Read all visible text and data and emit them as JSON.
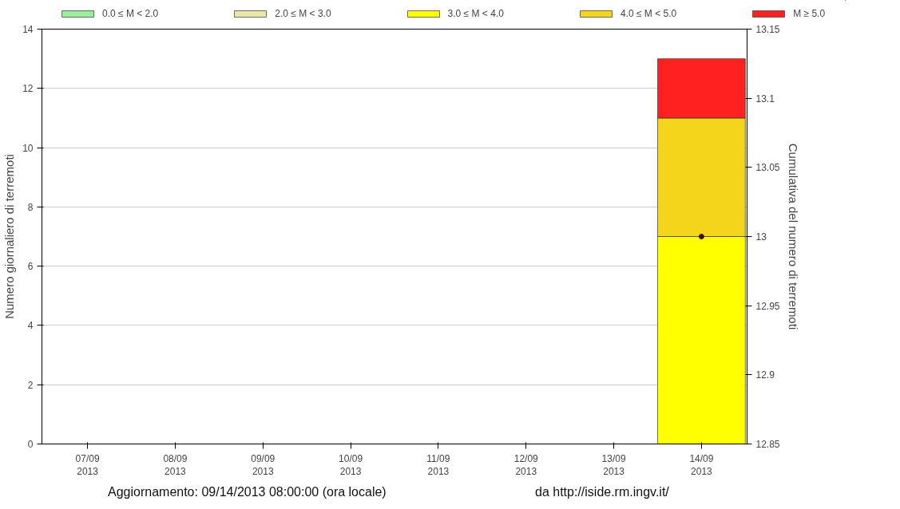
{
  "chart_data": {
    "type": "bar",
    "stacked": true,
    "categories": [
      "07/09\n2013",
      "08/09\n2013",
      "09/09\n2013",
      "10/09\n2013",
      "11/09\n2013",
      "12/09\n2013",
      "13/09\n2013",
      "14/09\n2013"
    ],
    "ylabel": "Numero giornaliero di terremoti",
    "y2label": "Cumulativa del numero di terremoti",
    "series": [
      {
        "name": "0.0 ≤ M < 2.0",
        "color": "#99ee99",
        "values": [
          0,
          0,
          0,
          0,
          0,
          0,
          0,
          0
        ]
      },
      {
        "name": "2.0 ≤ M < 3.0",
        "color": "#e8e8a8",
        "values": [
          0,
          0,
          0,
          0,
          0,
          0,
          0,
          0
        ]
      },
      {
        "name": "3.0 ≤ M < 4.0",
        "color": "#ffff00",
        "values": [
          0,
          0,
          0,
          0,
          0,
          0,
          0,
          7
        ]
      },
      {
        "name": "4.0 ≤ M < 5.0",
        "color": "#f5d51c",
        "values": [
          0,
          0,
          0,
          0,
          0,
          0,
          0,
          4
        ]
      },
      {
        "name": "M ≥ 5.0",
        "color": "#ff2020",
        "values": [
          0,
          0,
          0,
          0,
          0,
          0,
          0,
          2
        ]
      },
      {
        "type": "line",
        "axis": "y2",
        "color": "#3a1000",
        "marker": "circle",
        "values": [
          null,
          null,
          null,
          null,
          null,
          null,
          null,
          13
        ]
      }
    ],
    "ylim": [
      0,
      14
    ],
    "yticks": [
      0,
      2,
      4,
      6,
      8,
      10,
      12,
      14
    ],
    "y2lim": [
      12.85,
      13.15
    ],
    "y2ticks": [
      12.85,
      12.9,
      12.95,
      13,
      13.05,
      13.1,
      13.15
    ],
    "grid": "y",
    "legend": "top",
    "annotations": [
      "Aggiornamento: 09/14/2013 08:00:00 (ora locale)",
      "da http://iside.rm.ingv.it/"
    ]
  }
}
